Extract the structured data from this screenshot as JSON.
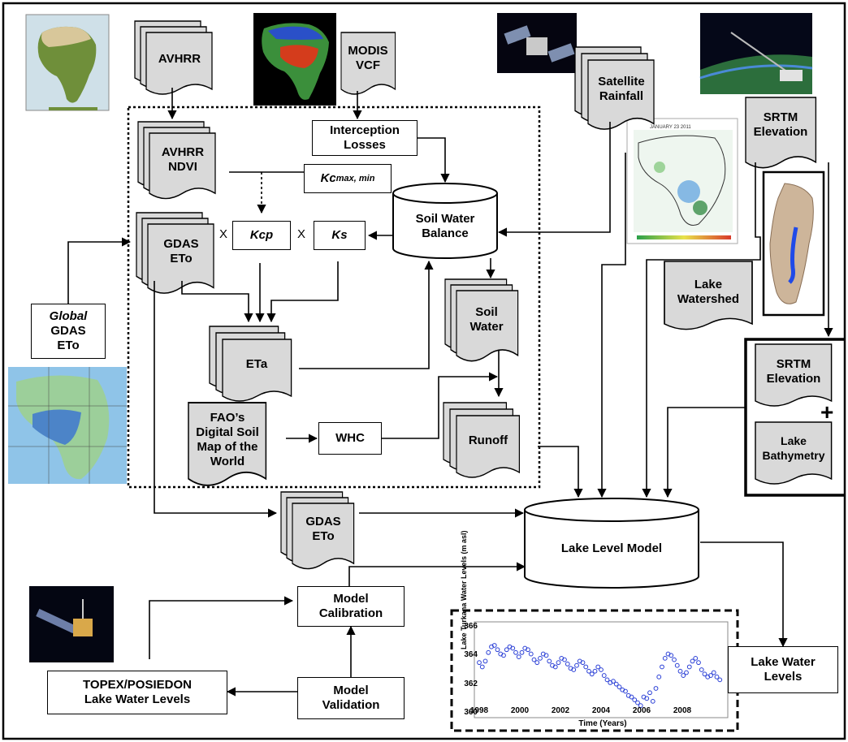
{
  "inputs": {
    "avhrr": "AVHRR",
    "modis_vcf": [
      "MODIS",
      "VCF"
    ],
    "satellite_rainfall": [
      "Satellite",
      "Rainfall"
    ],
    "srtm_elevation": [
      "SRTM",
      "Elevation"
    ],
    "global_gdas_eto": [
      "Global",
      "GDAS",
      "ETo"
    ]
  },
  "process": {
    "avhrr_ndvi": [
      "AVHRR",
      "NDVI"
    ],
    "interception_losses": [
      "Interception",
      "Losses"
    ],
    "kc_label": "Kc",
    "kc_subscript": "max, min",
    "gdas_eto": [
      "GDAS",
      "ETo"
    ],
    "kcp": "Kcp",
    "ks": "Ks",
    "multiply": "X",
    "soil_water_balance": [
      "Soil Water",
      "Balance"
    ],
    "soil_water": [
      "Soil",
      "Water"
    ],
    "eta": "ETa",
    "fao_soil_map": [
      "FAO’s",
      "Digital Soil",
      "Map of the",
      "World"
    ],
    "whc": "WHC",
    "runoff": "Runoff"
  },
  "lake": {
    "lake_watershed": [
      "Lake",
      "Watershed"
    ],
    "srtm_elevation": [
      "SRTM",
      "Elevation"
    ],
    "plus": "+",
    "lake_bathymetry": [
      "Lake",
      "Bathymetry"
    ],
    "gdas_eto": [
      "GDAS",
      "ETo"
    ],
    "lake_level_model": "Lake Level Model",
    "lake_water_levels": [
      "Lake Water",
      "Levels"
    ],
    "model_calibration": [
      "Model",
      "Calibration"
    ],
    "model_validation": [
      "Model",
      "Validation"
    ],
    "topex": [
      "TOPEX/POSIEDON",
      "Lake Water Levels"
    ]
  },
  "rainfall_map": {
    "date": "JANUARY 23 2011"
  },
  "chart_data": {
    "type": "scatter",
    "ylabel": "Lake Turkana Water Levels (m asl)",
    "xlabel": "Time (Years)",
    "xlim": [
      1998,
      2010
    ],
    "ylim": [
      360,
      366
    ],
    "xticks": [
      "1998",
      "2000",
      "2002",
      "2004",
      "2006",
      "2008"
    ],
    "yticks": [
      "360",
      "362",
      "364",
      "366"
    ],
    "color": "#2a3fd6",
    "points": [
      [
        1998.0,
        363.5
      ],
      [
        1998.15,
        363.2
      ],
      [
        1998.3,
        363.6
      ],
      [
        1998.45,
        364.2
      ],
      [
        1998.6,
        364.6
      ],
      [
        1998.75,
        364.7
      ],
      [
        1998.9,
        364.4
      ],
      [
        1999.05,
        364.1
      ],
      [
        1999.2,
        364.0
      ],
      [
        1999.35,
        364.4
      ],
      [
        1999.5,
        364.6
      ],
      [
        1999.65,
        364.5
      ],
      [
        1999.8,
        364.2
      ],
      [
        1999.95,
        363.9
      ],
      [
        2000.1,
        364.2
      ],
      [
        2000.25,
        364.5
      ],
      [
        2000.4,
        364.4
      ],
      [
        2000.55,
        364.1
      ],
      [
        2000.7,
        363.7
      ],
      [
        2000.85,
        363.5
      ],
      [
        2001.0,
        363.8
      ],
      [
        2001.15,
        364.1
      ],
      [
        2001.3,
        364.0
      ],
      [
        2001.45,
        363.6
      ],
      [
        2001.6,
        363.3
      ],
      [
        2001.75,
        363.2
      ],
      [
        2001.9,
        363.5
      ],
      [
        2002.05,
        363.8
      ],
      [
        2002.2,
        363.7
      ],
      [
        2002.35,
        363.4
      ],
      [
        2002.5,
        363.1
      ],
      [
        2002.65,
        363.0
      ],
      [
        2002.8,
        363.3
      ],
      [
        2002.95,
        363.6
      ],
      [
        2003.1,
        363.5
      ],
      [
        2003.25,
        363.2
      ],
      [
        2003.4,
        362.9
      ],
      [
        2003.55,
        362.7
      ],
      [
        2003.7,
        362.9
      ],
      [
        2003.85,
        363.2
      ],
      [
        2004.0,
        363.0
      ],
      [
        2004.15,
        362.6
      ],
      [
        2004.3,
        362.3
      ],
      [
        2004.45,
        362.1
      ],
      [
        2004.6,
        362.2
      ],
      [
        2004.75,
        362.0
      ],
      [
        2004.9,
        361.8
      ],
      [
        2005.05,
        361.6
      ],
      [
        2005.2,
        361.5
      ],
      [
        2005.35,
        361.2
      ],
      [
        2005.5,
        361.1
      ],
      [
        2005.65,
        360.9
      ],
      [
        2005.8,
        360.7
      ],
      [
        2005.95,
        360.5
      ],
      [
        2006.1,
        361.1
      ],
      [
        2006.25,
        361.0
      ],
      [
        2006.4,
        361.4
      ],
      [
        2006.55,
        360.8
      ],
      [
        2006.7,
        361.7
      ],
      [
        2006.85,
        362.5
      ],
      [
        2007.0,
        363.2
      ],
      [
        2007.15,
        363.8
      ],
      [
        2007.3,
        364.1
      ],
      [
        2007.45,
        364.0
      ],
      [
        2007.6,
        363.7
      ],
      [
        2007.75,
        363.3
      ],
      [
        2007.9,
        362.9
      ],
      [
        2008.05,
        362.6
      ],
      [
        2008.2,
        362.8
      ],
      [
        2008.35,
        363.2
      ],
      [
        2008.5,
        363.6
      ],
      [
        2008.65,
        363.8
      ],
      [
        2008.8,
        363.5
      ],
      [
        2008.95,
        363.0
      ],
      [
        2009.1,
        362.7
      ],
      [
        2009.25,
        362.5
      ],
      [
        2009.4,
        362.6
      ],
      [
        2009.55,
        362.8
      ],
      [
        2009.7,
        362.5
      ],
      [
        2009.85,
        362.3
      ]
    ]
  }
}
